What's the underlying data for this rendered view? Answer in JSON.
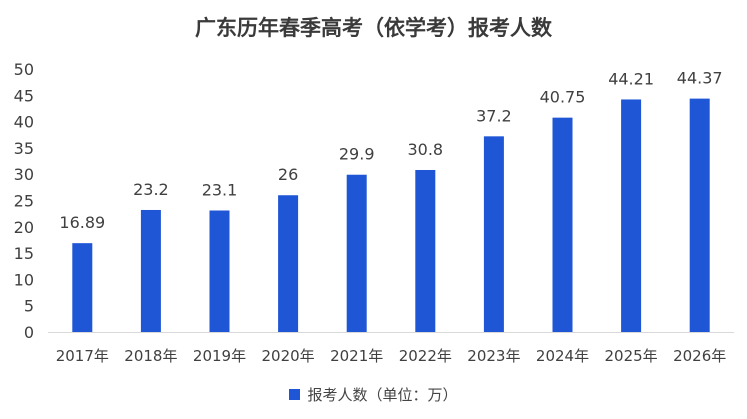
{
  "chart_data": {
    "type": "bar",
    "title": "广东历年春季高考（依学考）报考人数",
    "categories": [
      "2017年",
      "2018年",
      "2019年",
      "2020年",
      "2021年",
      "2022年",
      "2023年",
      "2024年",
      "2025年",
      "2026年"
    ],
    "series": [
      {
        "name": "报考人数（单位：万）",
        "values": [
          16.89,
          23.2,
          23.1,
          26,
          29.9,
          30.8,
          37.2,
          40.75,
          44.21,
          44.37
        ],
        "value_labels": [
          "16.89",
          "23.2",
          "23.1",
          "26",
          "29.9",
          "30.8",
          "37.2",
          "40.75",
          "44.21",
          "44.37"
        ],
        "color": "#1f56d6"
      }
    ],
    "ylim": [
      0,
      50
    ],
    "yticks": [
      0,
      5,
      10,
      15,
      20,
      25,
      30,
      35,
      40,
      45,
      50
    ],
    "grid": false,
    "legend_position": "bottom",
    "colors": {
      "bar": "#1f56d6",
      "axis": "#d9d9d9",
      "text": "#404040"
    }
  }
}
